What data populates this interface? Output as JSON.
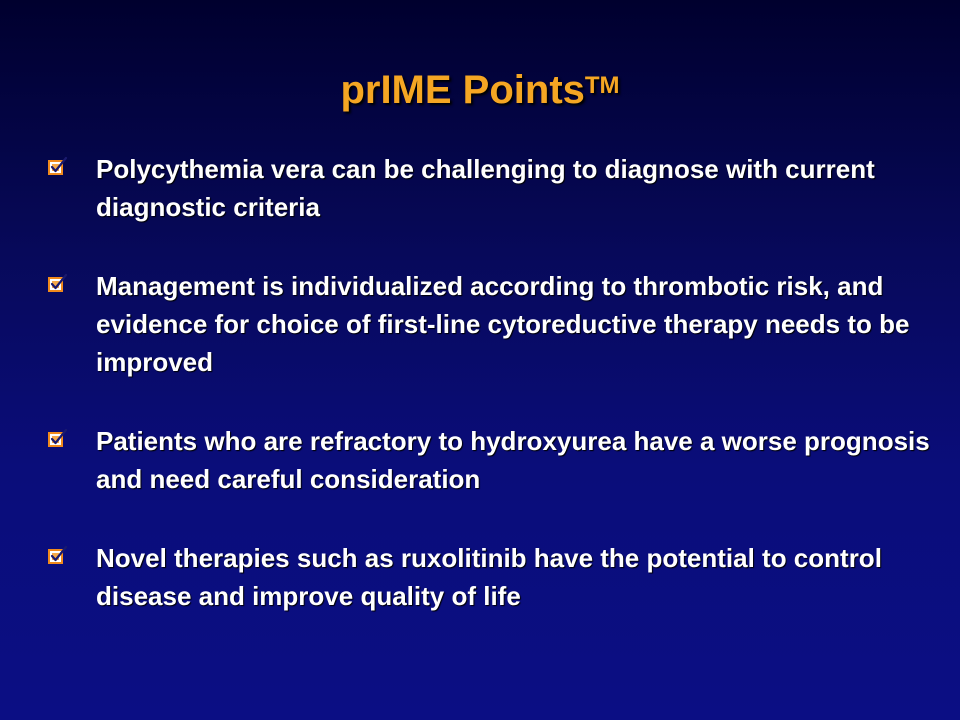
{
  "slide": {
    "title": "prIME Points",
    "title_superscript": "TM",
    "title_color": "#f5a623",
    "check_icon": "checkbox-checked-icon",
    "bullets": [
      {
        "text": "Polycythemia vera can be challenging to diagnose with current diagnostic criteria"
      },
      {
        "text": "Management is individualized according to thrombotic risk, and evidence for choice of first-line cytoreductive therapy needs to be improved"
      },
      {
        "text": "Patients who are refractory to hydroxyurea have a worse prognosis and need careful consideration"
      },
      {
        "text": "Novel therapies such as ruxolitinib have the potential to control disease and improve quality of life"
      }
    ]
  }
}
